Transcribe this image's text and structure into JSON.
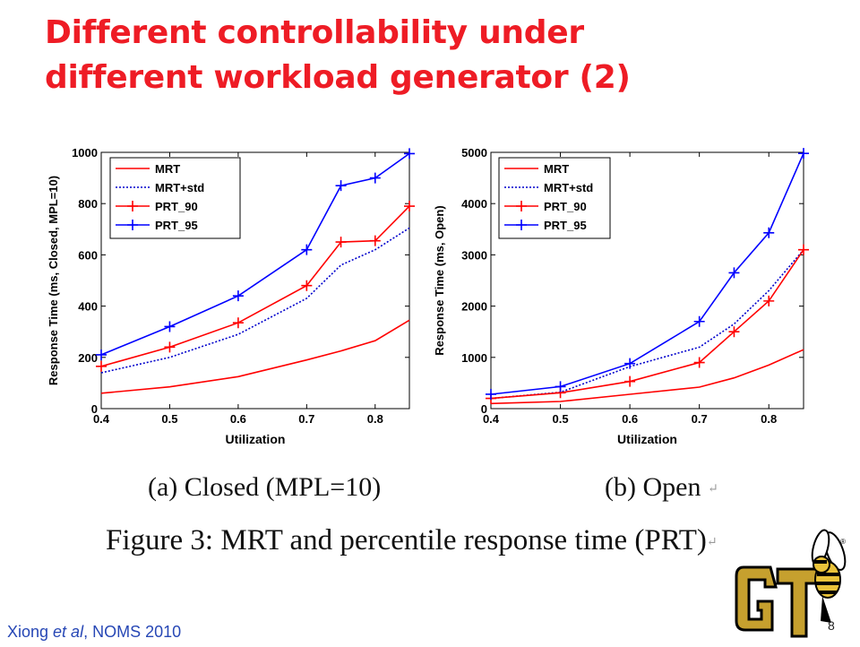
{
  "slide": {
    "title_line1": "Different controllability under",
    "title_line2": "different workload generator (2)",
    "caption_a": "(a) Closed (MPL=10)",
    "caption_b": "(b) Open",
    "figure_caption": "Figure 3: MRT and percentile response time (PRT)",
    "footer_author": "Xiong ",
    "footer_etal": "et al",
    "footer_venue": ", NOMS 2010",
    "page_number": "8",
    "title_color": "#ee1c25",
    "footer_color": "#2747b5"
  },
  "chart_data": [
    {
      "type": "line",
      "title": "",
      "xlabel": "Utilization",
      "ylabel": "Response Time (ms, Closed, MPL=10)",
      "xlim": [
        0.4,
        0.85
      ],
      "ylim": [
        0,
        1000
      ],
      "xticks": [
        0.4,
        0.5,
        0.6,
        0.7,
        0.8
      ],
      "xtick_labels": [
        "0.4",
        "0.5",
        "0.6",
        "0.7",
        "0.8"
      ],
      "yticks": [
        0,
        200,
        400,
        600,
        800,
        1000
      ],
      "ytick_labels": [
        "0",
        "200",
        "400",
        "600",
        "800",
        "1000"
      ],
      "grid": false,
      "legend_position": "top-left",
      "x": [
        0.4,
        0.5,
        0.6,
        0.7,
        0.75,
        0.8,
        0.85
      ],
      "series": [
        {
          "name": "MRT",
          "values": [
            60,
            85,
            125,
            190,
            225,
            265,
            345
          ],
          "color": "#ff0000",
          "dash": "solid",
          "marker": "none"
        },
        {
          "name": "MRT+std",
          "values": [
            140,
            200,
            290,
            430,
            560,
            620,
            705
          ],
          "color": "#0000cc",
          "dash": "dotted",
          "marker": "none"
        },
        {
          "name": "PRT_90",
          "values": [
            165,
            240,
            335,
            480,
            650,
            655,
            790
          ],
          "color": "#ff0000",
          "dash": "solid",
          "marker": "plus"
        },
        {
          "name": "PRT_95",
          "values": [
            210,
            320,
            440,
            620,
            870,
            900,
            995
          ],
          "color": "#0000ff",
          "dash": "solid",
          "marker": "plus"
        }
      ]
    },
    {
      "type": "line",
      "title": "",
      "xlabel": "Utilization",
      "ylabel": "Response Time (ms, Open)",
      "xlim": [
        0.4,
        0.85
      ],
      "ylim": [
        0,
        5000
      ],
      "xticks": [
        0.4,
        0.5,
        0.6,
        0.7,
        0.8
      ],
      "xtick_labels": [
        "0.4",
        "0.5",
        "0.6",
        "0.7",
        "0.8"
      ],
      "yticks": [
        0,
        1000,
        2000,
        3000,
        4000,
        5000
      ],
      "ytick_labels": [
        "0",
        "1000",
        "2000",
        "3000",
        "4000",
        "5000"
      ],
      "grid": false,
      "legend_position": "top-left",
      "x": [
        0.4,
        0.5,
        0.6,
        0.7,
        0.75,
        0.8,
        0.85
      ],
      "series": [
        {
          "name": "MRT",
          "values": [
            100,
            140,
            280,
            420,
            600,
            850,
            1150
          ],
          "color": "#ff0000",
          "dash": "solid",
          "marker": "none"
        },
        {
          "name": "MRT+std",
          "values": [
            200,
            320,
            820,
            1200,
            1650,
            2300,
            3100
          ],
          "color": "#0000cc",
          "dash": "dotted",
          "marker": "none"
        },
        {
          "name": "PRT_90",
          "values": [
            200,
            310,
            530,
            900,
            1500,
            2100,
            3100
          ],
          "color": "#ff0000",
          "dash": "solid",
          "marker": "plus"
        },
        {
          "name": "PRT_95",
          "values": [
            280,
            430,
            880,
            1700,
            2650,
            3430,
            4980
          ],
          "color": "#0000ff",
          "dash": "solid",
          "marker": "plus"
        }
      ]
    }
  ]
}
